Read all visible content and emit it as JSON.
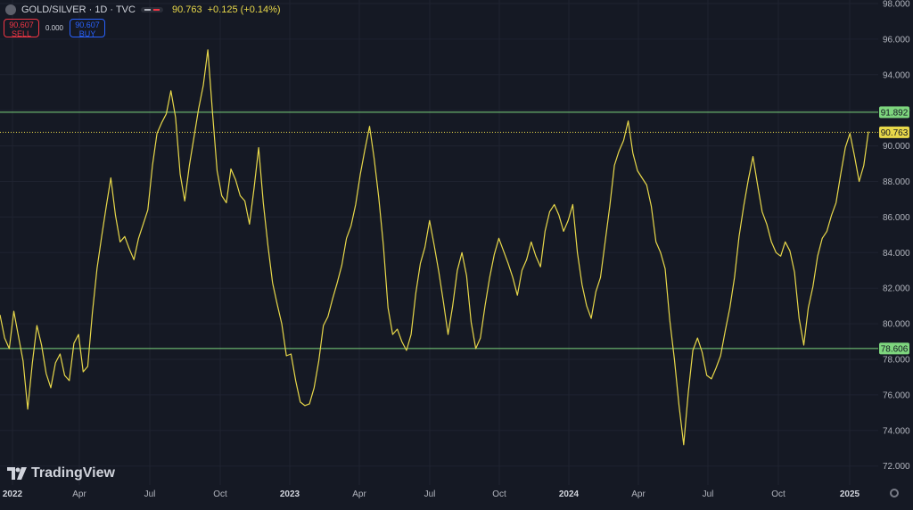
{
  "header": {
    "symbol": "GOLD/SILVER · 1D · TVC",
    "price": "90.763",
    "change": "+0.125 (+0.14%)"
  },
  "trade": {
    "sell_price": "90.607",
    "sell_label": "SELL",
    "spread": "0.000",
    "buy_price": "90.607",
    "buy_label": "BUY"
  },
  "brand": {
    "name": "TradingView"
  },
  "icons": {
    "symbol": "symbol-icon",
    "visibility": "eye-icon",
    "logo": "tradingview-logo-icon",
    "settings": "gear-icon"
  },
  "colors": {
    "background": "#151924",
    "line": "#e8d84a",
    "level": "#7ed67e",
    "grid": "#1f2330"
  },
  "chart_data": {
    "type": "line",
    "ylim": [
      71,
      98
    ],
    "y_ticks": [
      "98.000",
      "96.000",
      "94.000",
      "92.000",
      "90.000",
      "88.000",
      "86.000",
      "84.000",
      "82.000",
      "80.000",
      "78.000",
      "76.000",
      "74.000",
      "72.000"
    ],
    "x_ticks": [
      "2022",
      "Apr",
      "Jul",
      "Oct",
      "2023",
      "Apr",
      "Jul",
      "Oct",
      "2024",
      "Apr",
      "Jul",
      "Oct",
      "2025"
    ],
    "grid": true,
    "levels": [
      {
        "label": "91.892",
        "value": 91.892,
        "color": "#7ed67e",
        "style": "solid"
      },
      {
        "label": "90.763",
        "value": 90.763,
        "color": "#e8d84a",
        "style": "dotted"
      },
      {
        "label": "78.606",
        "value": 78.606,
        "color": "#7ed67e",
        "style": "solid"
      }
    ],
    "series": [
      {
        "values": [
          80.5,
          79.2,
          78.6,
          80.7,
          79.3,
          77.9,
          75.2,
          77.8,
          79.9,
          78.8,
          77.2,
          76.4,
          77.8,
          78.3,
          77.1,
          76.8,
          78.9,
          79.4,
          77.3,
          77.6,
          80.6,
          83.1,
          84.9,
          86.6,
          88.2,
          86.1,
          84.6,
          84.9,
          84.2,
          83.6,
          84.8,
          85.6,
          86.4,
          88.9,
          90.7,
          91.3,
          91.8,
          93.1,
          91.6,
          88.4,
          86.9,
          88.9,
          90.5,
          92.1,
          93.4,
          95.4,
          91.9,
          88.6,
          87.2,
          86.8,
          88.7,
          88.1,
          87.2,
          86.9,
          85.6,
          87.6,
          89.9,
          86.8,
          84.4,
          82.3,
          81.1,
          80.0,
          78.2,
          78.3,
          76.8,
          75.6,
          75.4,
          75.5,
          76.4,
          77.9,
          79.9,
          80.4,
          81.4,
          82.3,
          83.3,
          84.8,
          85.5,
          86.7,
          88.4,
          89.8,
          91.1,
          89.3,
          87.1,
          84.4,
          80.9,
          79.4,
          79.7,
          79.0,
          78.5,
          79.4,
          81.7,
          83.4,
          84.3,
          85.8,
          84.4,
          82.9,
          81.2,
          79.4,
          81.0,
          83.0,
          84.0,
          82.7,
          80.1,
          78.6,
          79.2,
          81.0,
          82.6,
          83.9,
          84.8,
          84.1,
          83.4,
          82.6,
          81.6,
          83.0,
          83.6,
          84.6,
          83.8,
          83.2,
          85.2,
          86.3,
          86.7,
          86.1,
          85.2,
          85.8,
          86.7,
          84.0,
          82.2,
          81.0,
          80.3,
          81.8,
          82.6,
          84.6,
          86.6,
          88.9,
          89.7,
          90.3,
          91.4,
          89.6,
          88.6,
          88.2,
          87.8,
          86.6,
          84.6,
          84.0,
          83.1,
          80.2,
          78.0,
          75.4,
          73.2,
          76.1,
          78.5,
          79.2,
          78.4,
          77.1,
          76.9,
          77.5,
          78.2,
          79.6,
          80.9,
          82.6,
          84.9,
          86.6,
          88.1,
          89.4,
          87.8,
          86.3,
          85.6,
          84.6,
          84.0,
          83.8,
          84.6,
          84.1,
          82.9,
          80.3,
          78.8,
          80.9,
          82.1,
          83.8,
          84.8,
          85.2,
          86.1,
          86.8,
          88.4,
          89.9,
          90.7,
          89.4,
          88.0,
          88.9,
          90.8
        ]
      }
    ]
  }
}
